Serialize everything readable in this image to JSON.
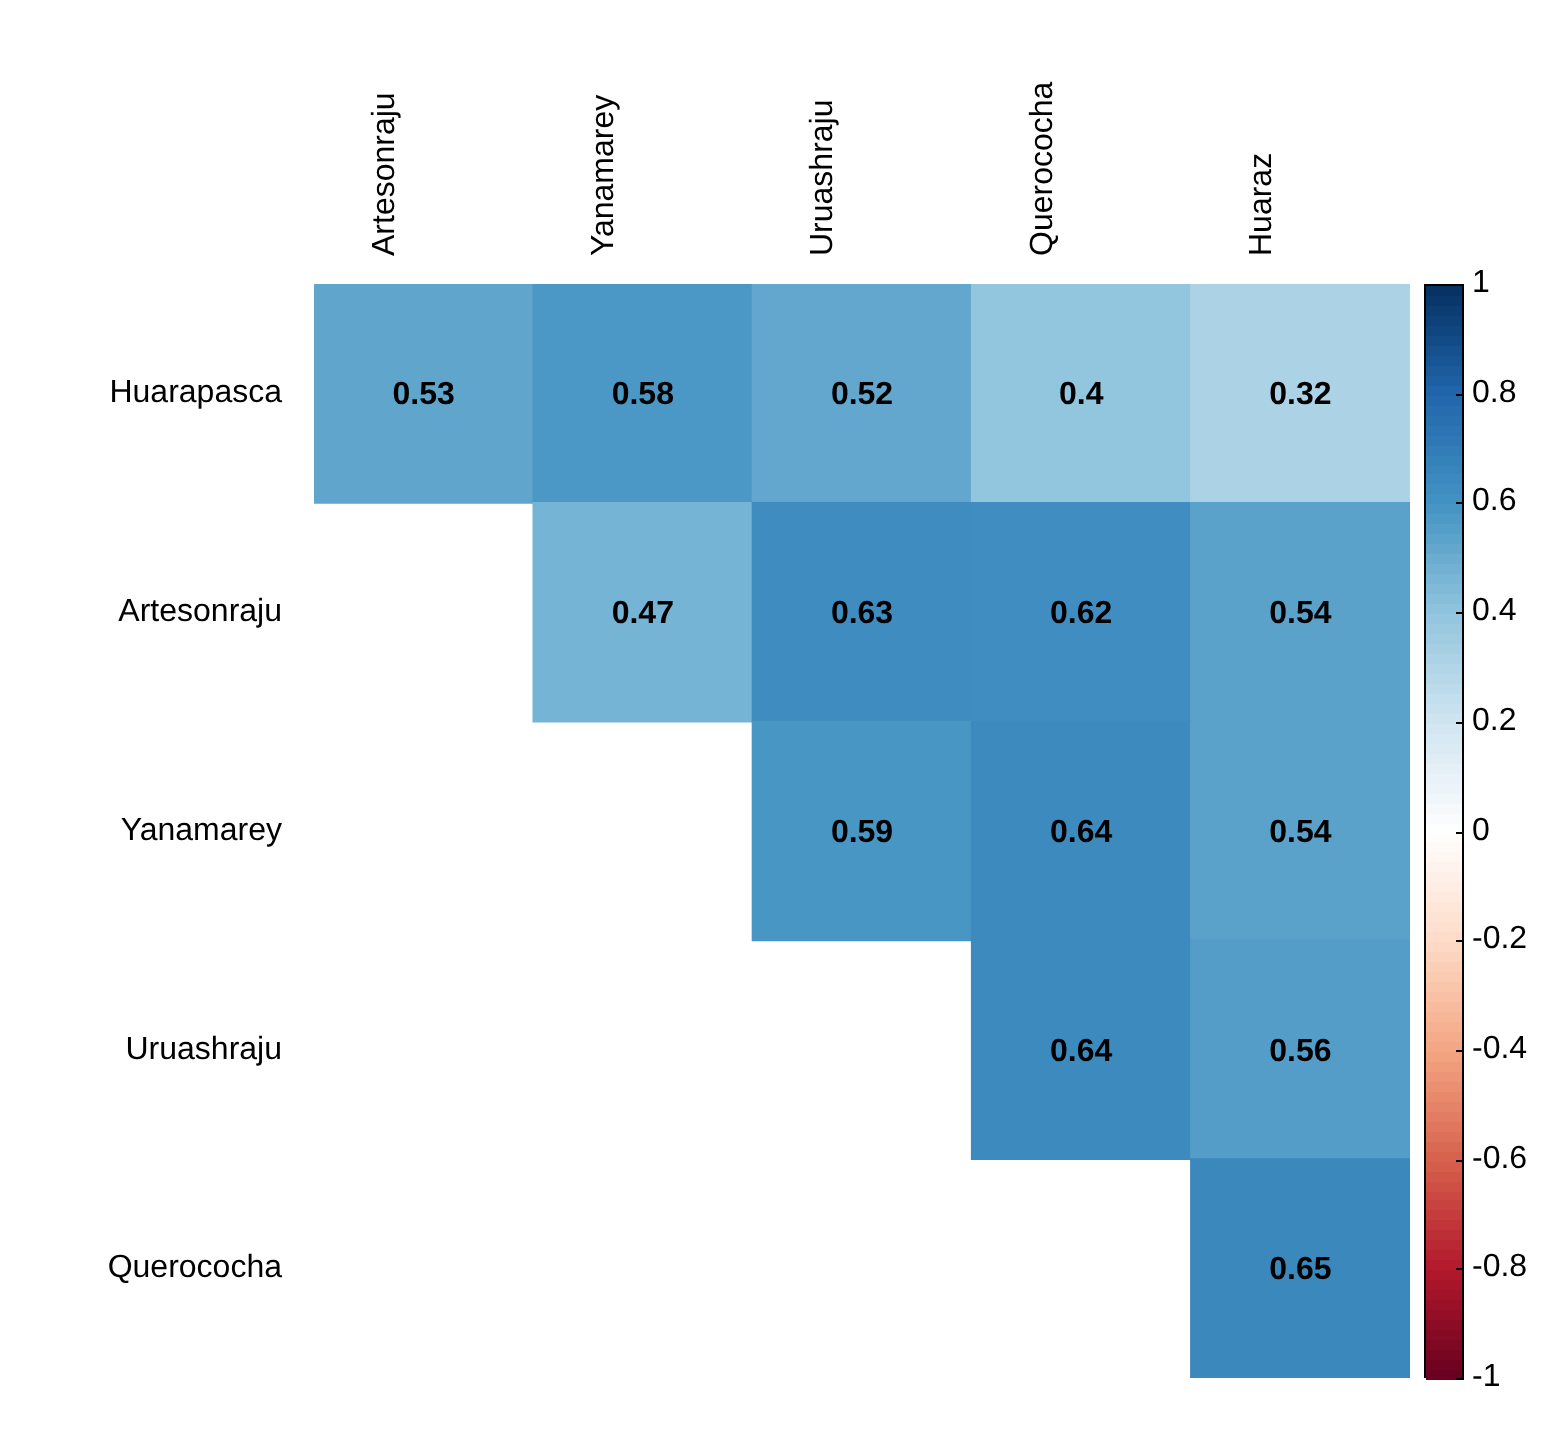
{
  "chart_data": {
    "type": "heatmap",
    "categories": [
      "Artesonraju",
      "Yanamarey",
      "Uruashraju",
      "Querococha",
      "Huaraz"
    ],
    "y_categories": [
      "Huarapasca",
      "Artesonraju",
      "Yanamarey",
      "Uruashraju",
      "Querococha"
    ],
    "cells": [
      [
        0.53,
        0.58,
        0.52,
        0.4,
        0.32
      ],
      [
        null,
        0.47,
        0.63,
        0.62,
        0.54
      ],
      [
        null,
        null,
        0.59,
        0.64,
        0.54
      ],
      [
        null,
        null,
        null,
        0.64,
        0.56
      ],
      [
        null,
        null,
        null,
        null,
        0.65
      ]
    ],
    "data_labels": true,
    "clim": [
      -1,
      1
    ],
    "cticks": [
      -1,
      -0.8,
      -0.6,
      -0.4,
      -0.2,
      0,
      0.2,
      0.4,
      0.6,
      0.8,
      1
    ]
  }
}
